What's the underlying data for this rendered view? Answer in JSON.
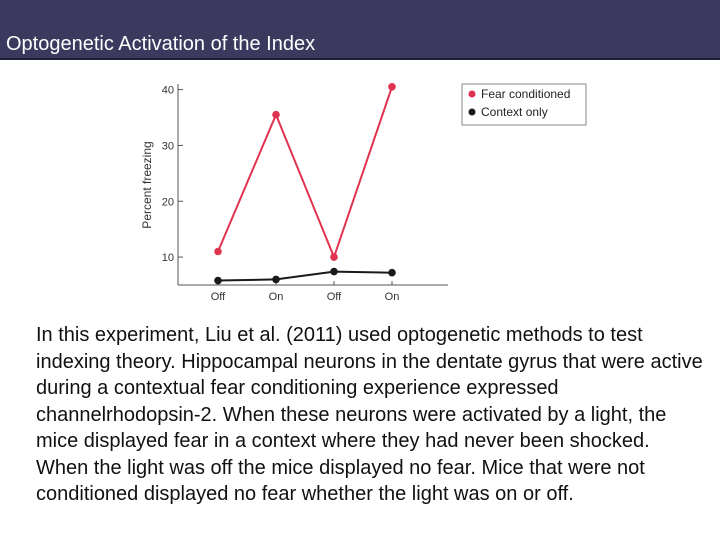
{
  "slide": {
    "title": "Optogenetic Activation of the Index",
    "body": "In this experiment, Liu et al. (2011) used optogenetic methods to test indexing theory. Hippocampal neurons in the dentate gyrus that were active during a contextual fear conditioning experience expressed channelrhodopsin-2. When these neurons were activated by a light, the mice displayed fear in a context where they had never been shocked. When the light was off the mice displayed no fear. Mice that were not conditioned displayed no fear whether the light was on or off."
  },
  "chart_data": {
    "type": "line",
    "categories": [
      "Off",
      "On",
      "Off",
      "On"
    ],
    "ylabel": "Percent freezing",
    "xlabel": "",
    "title": "",
    "ylim": [
      5,
      41
    ],
    "yticks": [
      10,
      20,
      30,
      40
    ],
    "legend_position": "top-right",
    "grid": false,
    "series": [
      {
        "name": "Fear conditioned",
        "color": "#e0334f",
        "values": [
          11,
          35.5,
          10,
          40.5
        ]
      },
      {
        "name": "Context only",
        "color": "#1a1a1a",
        "values": [
          5.8,
          6,
          7.4,
          7.2
        ]
      }
    ]
  }
}
